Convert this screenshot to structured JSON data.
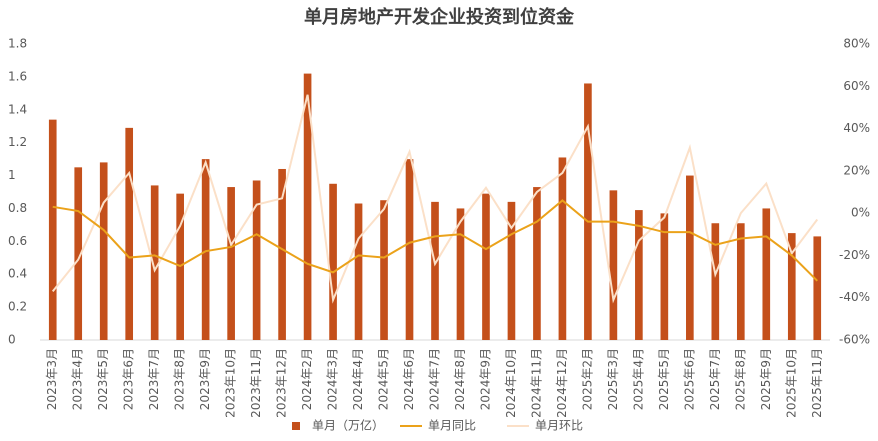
{
  "chart_data": {
    "type": "bar-line",
    "title": "单月房地产开发企业投资到位资金",
    "categories": [
      "2023年3月",
      "2023年4月",
      "2023年5月",
      "2023年6月",
      "2023年7月",
      "2023年8月",
      "2023年9月",
      "2023年10月",
      "2023年11月",
      "2023年12月",
      "2024年2月",
      "2024年3月",
      "2024年4月",
      "2024年5月",
      "2024年6月",
      "2024年7月",
      "2024年8月",
      "2024年9月",
      "2024年10月",
      "2024年11月",
      "2024年12月",
      "2025年2月",
      "2025年3月",
      "2025年4月",
      "2025年5月",
      "2025年6月",
      "2025年7月",
      "2025年8月",
      "2025年9月",
      "2025年10月",
      "2025年11月"
    ],
    "series": [
      {
        "name": "单月（万亿）",
        "type": "bar",
        "color": "#c4501b",
        "values": [
          1.34,
          1.05,
          1.08,
          1.29,
          0.94,
          0.89,
          1.1,
          0.93,
          0.97,
          1.04,
          1.62,
          0.95,
          0.83,
          0.85,
          1.1,
          0.84,
          0.8,
          0.89,
          0.84,
          0.93,
          1.11,
          1.56,
          0.91,
          0.79,
          0.77,
          1.0,
          0.71,
          0.71,
          0.8,
          0.65,
          0.63
        ]
      },
      {
        "name": "单月同比",
        "type": "line",
        "axis": "y2",
        "color": "#eba21a",
        "values": [
          3,
          1,
          -8,
          -21,
          -20,
          -25,
          -18,
          -16,
          -10,
          -17,
          -24,
          -28,
          -20,
          -21,
          -14,
          -11,
          -10,
          -17,
          -10,
          -4,
          6,
          -4,
          -4,
          -6,
          -9,
          -9,
          -15,
          -12,
          -11,
          -20,
          -32
        ]
      },
      {
        "name": "单月环比",
        "type": "line",
        "axis": "y2",
        "color": "#fbe0c8",
        "values": [
          -37,
          -22,
          5,
          19,
          -27,
          -6,
          24,
          -15,
          4,
          7,
          56,
          -41,
          -12,
          2,
          29,
          -24,
          -4,
          12,
          -7,
          10,
          19,
          41,
          -41,
          -13,
          -2,
          31,
          -29,
          0,
          14,
          -19,
          -3
        ]
      }
    ],
    "ylim": [
      0,
      1.8
    ],
    "yticks": [
      0,
      0.2,
      0.4,
      0.6,
      0.8,
      1,
      1.2,
      1.4,
      1.6,
      1.8
    ],
    "y2lim": [
      -60,
      80
    ],
    "y2ticks": [
      {
        "value": -60,
        "label": "-60%"
      },
      {
        "value": -40,
        "label": "-40%"
      },
      {
        "value": -20,
        "label": "-20%"
      },
      {
        "value": 0,
        "label": "0%"
      },
      {
        "value": 20,
        "label": "20%"
      },
      {
        "value": 40,
        "label": "40%"
      },
      {
        "value": 60,
        "label": "60%"
      },
      {
        "value": 80,
        "label": "80%"
      }
    ],
    "grid": false,
    "legend": "bottom"
  }
}
